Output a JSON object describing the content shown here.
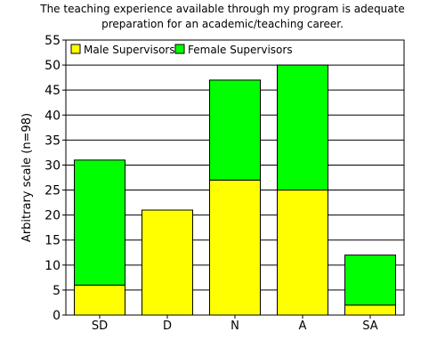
{
  "chart_data": {
    "type": "bar",
    "stacked": true,
    "title_lines": [
      "The teaching experience available through my program is adequate",
      "preparation for an academic/teaching career."
    ],
    "xlabel": "",
    "ylabel": "Arbitrary scale (n=98)",
    "categories": [
      "SD",
      "D",
      "N",
      "A",
      "SA"
    ],
    "series": [
      {
        "name": "Male Supervisors",
        "color": "#ffff00",
        "values": [
          6,
          21,
          27,
          25,
          2
        ]
      },
      {
        "name": "Female Supervisors",
        "color": "#00ff00",
        "values": [
          25,
          0,
          20,
          25,
          10
        ]
      }
    ],
    "ylim": [
      0,
      55
    ],
    "yticks": [
      0,
      5,
      10,
      15,
      20,
      25,
      30,
      35,
      40,
      45,
      50,
      55
    ],
    "grid": true,
    "legend_position": "top-left"
  }
}
